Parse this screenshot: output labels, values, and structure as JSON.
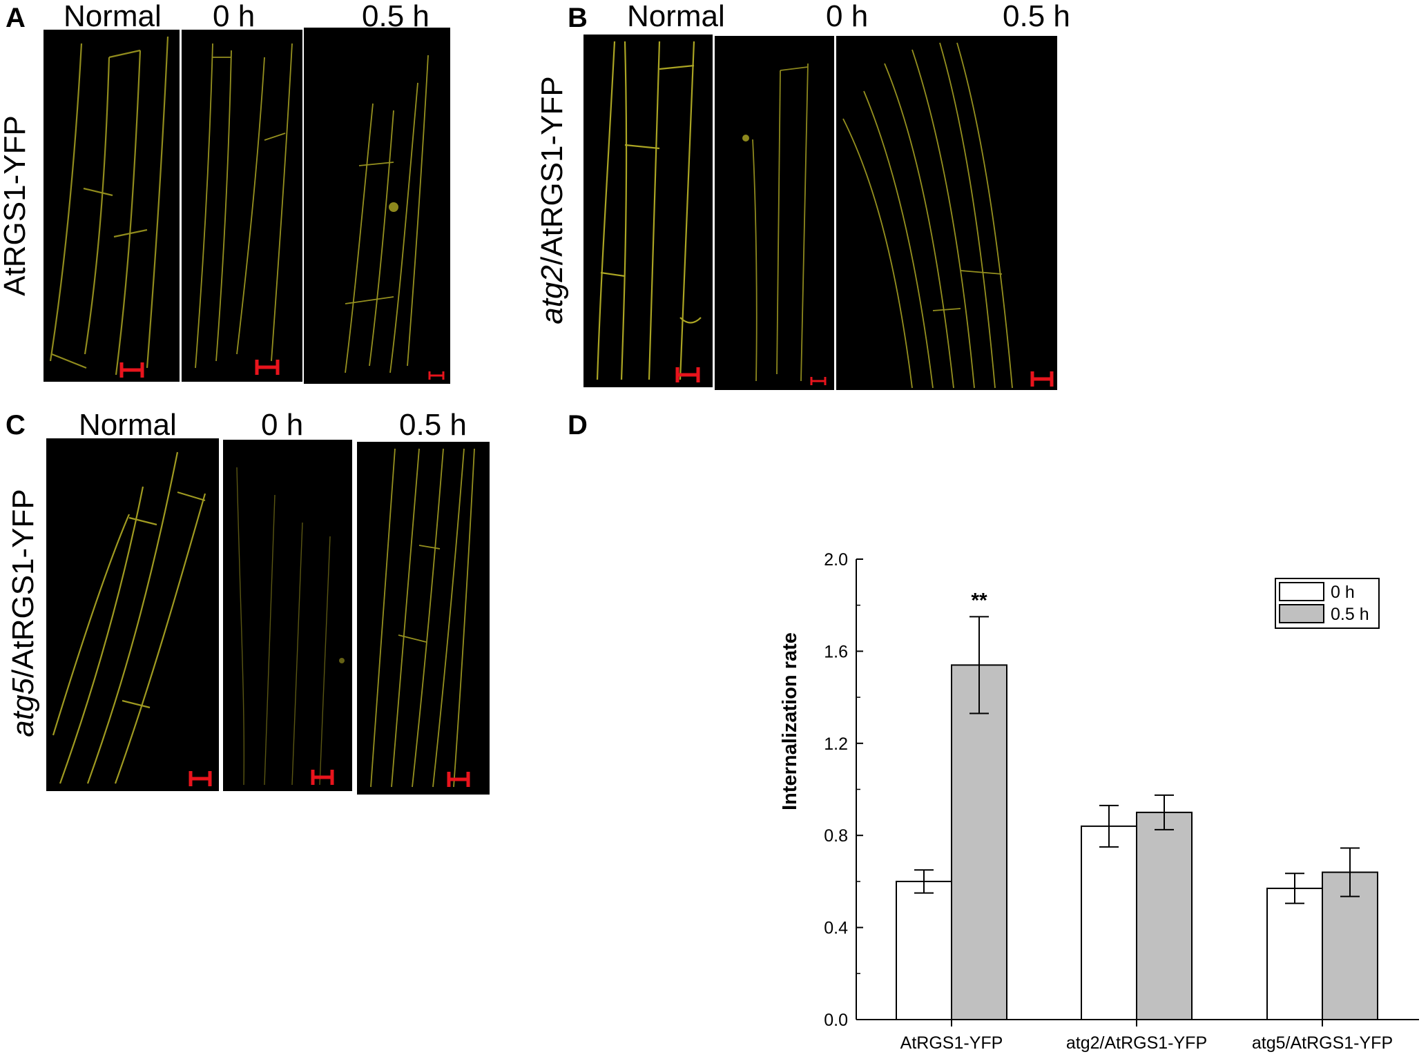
{
  "panels": {
    "A": {
      "letter": "A",
      "row_label": "AtRGS1-YFP",
      "columns": [
        "Normal",
        "0 h",
        "0.5 h"
      ]
    },
    "B": {
      "letter": "B",
      "row_label_italic": "atg2",
      "row_label_rest": "/AtRGS1-YFP",
      "columns": [
        "Normal",
        "0 h",
        "0.5 h"
      ]
    },
    "C": {
      "letter": "C",
      "row_label_italic": "atg5",
      "row_label_rest": "/AtRGS1-YFP",
      "columns": [
        "Normal",
        "0 h",
        "0.5 h"
      ]
    },
    "D": {
      "letter": "D"
    }
  },
  "colors": {
    "micrograph_bg": "#000000",
    "membrane_signal": "#c9c22a",
    "scale_bar": "#e8141c",
    "bar_0h": "#ffffff",
    "bar_05h": "#c0c0c0"
  },
  "chart_data": {
    "type": "bar",
    "categories": [
      "AtRGS1-YFP",
      "atg2/AtRGS1-YFP",
      "atg5/AtRGS1-YFP"
    ],
    "series": [
      {
        "name": "0 h",
        "values": [
          0.6,
          0.84,
          0.57
        ],
        "errors": [
          0.05,
          0.09,
          0.065
        ],
        "color": "#ffffff"
      },
      {
        "name": "0.5 h",
        "values": [
          1.54,
          0.9,
          0.64
        ],
        "errors": [
          0.21,
          0.075,
          0.105
        ],
        "color": "#c0c0c0"
      }
    ],
    "annotations": [
      {
        "category": "AtRGS1-YFP",
        "series": "0.5 h",
        "text": "**"
      }
    ],
    "ylabel": "Internalization rate",
    "xlabel": "",
    "ylim": [
      0.0,
      2.0
    ],
    "yticks": [
      "0.0",
      "0.4",
      "0.8",
      "1.2",
      "1.6",
      "2.0"
    ],
    "legend_position": "top-right",
    "grid": false
  }
}
